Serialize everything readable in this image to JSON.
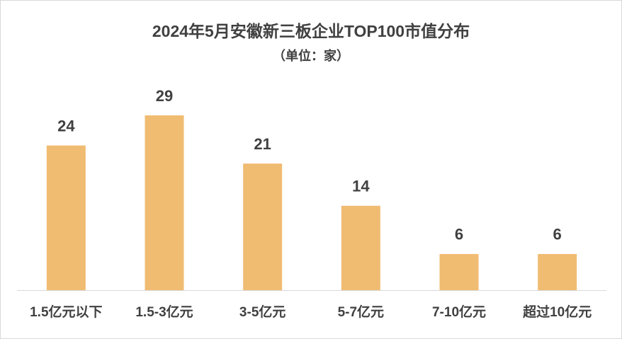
{
  "chart_data": {
    "type": "bar",
    "title": "2024年5月安徽新三板企业TOP100市值分布",
    "subtitle": "（单位：家）",
    "categories": [
      "1.5亿元以下",
      "1.5-3亿元",
      "3-5亿元",
      "5-7亿元",
      "7-10亿元",
      "超过10亿元"
    ],
    "values": [
      24,
      29,
      21,
      14,
      6,
      6
    ],
    "color": "#f0bc72"
  }
}
